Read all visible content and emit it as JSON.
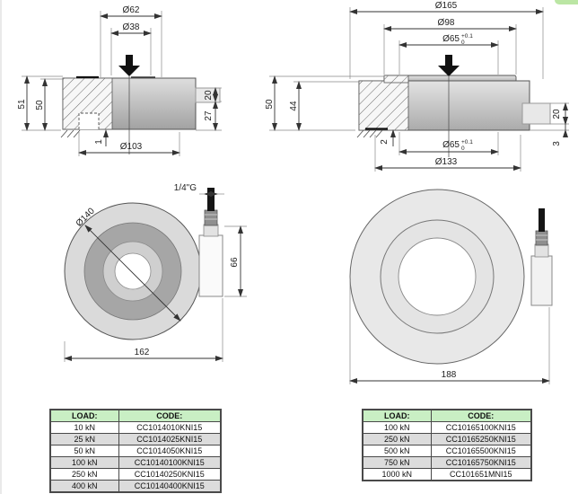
{
  "left_drawing": {
    "section_view": {
      "dim_d62": "Ø62",
      "dim_d38": "Ø38",
      "dim_h51": "51",
      "dim_h50": "50",
      "dim_h20": "20",
      "dim_h27": "27",
      "dim_1": "1",
      "dim_d103": "Ø103"
    },
    "top_view": {
      "dim_d140": "Ø140",
      "thread_label": "1/4\"G",
      "dim_h66": "66",
      "dim_w162": "162"
    },
    "table": {
      "header_load": "LOAD:",
      "header_code": "CODE:",
      "rows": [
        {
          "load": "10 kN",
          "code": "CC1014010KNI15"
        },
        {
          "load": "25 kN",
          "code": "CC1014025KNI15"
        },
        {
          "load": "50 kN",
          "code": "CC1014050KNI15"
        },
        {
          "load": "100 kN",
          "code": "CC10140100KNI15"
        },
        {
          "load": "250 kN",
          "code": "CC10140250KNI15"
        },
        {
          "load": "400 kN",
          "code": "CC10140400KNI15"
        }
      ]
    }
  },
  "right_drawing": {
    "section_view": {
      "dim_d165": "Ø165",
      "dim_d98": "Ø98",
      "dim_d65_top": "Ø65",
      "dim_d65_top_tol_plus": "+0.1",
      "dim_d65_top_tol_zero": "0",
      "dim_h50": "50",
      "dim_h44": "44",
      "dim_h20": "20",
      "dim_h3": "3",
      "dim_2": "2",
      "dim_d65_bottom": "Ø65",
      "dim_d65_bottom_tol_plus": "+0.1",
      "dim_d65_bottom_tol_zero": "0",
      "dim_d133": "Ø133"
    },
    "top_view": {
      "dim_w188": "188"
    },
    "table": {
      "header_load": "LOAD:",
      "header_code": "CODE:",
      "rows": [
        {
          "load": "100 kN",
          "code": "CC10165100KNI15"
        },
        {
          "load": "250 kN",
          "code": "CC10165250KNI15"
        },
        {
          "load": "500 kN",
          "code": "CC10165500KNI15"
        },
        {
          "load": "750 kN",
          "code": "CC10165750KNI15"
        },
        {
          "load": "1000 kN",
          "code": "CC101651MNI15"
        }
      ]
    }
  }
}
